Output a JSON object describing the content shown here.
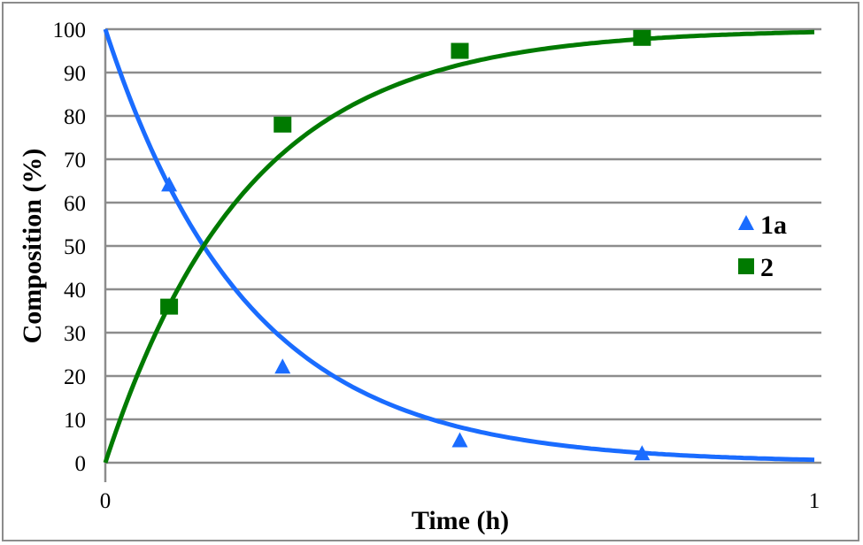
{
  "chart_data": {
    "type": "scatter",
    "title": "",
    "xlabel": "Time (h)",
    "ylabel": "Composition (%)",
    "xlim": [
      0,
      1
    ],
    "ylim": [
      0,
      100
    ],
    "x_ticks": [
      "0",
      "1"
    ],
    "y_ticks": [
      "0",
      "10",
      "20",
      "30",
      "40",
      "50",
      "60",
      "70",
      "80",
      "90",
      "100"
    ],
    "grid": "horizontal",
    "legend_position": "right",
    "series": [
      {
        "name": "1a",
        "marker": "triangle",
        "color": "#1a6cff",
        "x": [
          0.09,
          0.25,
          0.5,
          0.757
        ],
        "values": [
          64,
          22,
          5,
          2
        ],
        "fit": "100*exp(-5*t)"
      },
      {
        "name": "2",
        "marker": "square",
        "color": "#007a00",
        "x": [
          0.09,
          0.25,
          0.5,
          0.757
        ],
        "values": [
          36,
          78,
          95,
          98
        ],
        "fit": "100*(1-exp(-5*t))"
      }
    ]
  }
}
